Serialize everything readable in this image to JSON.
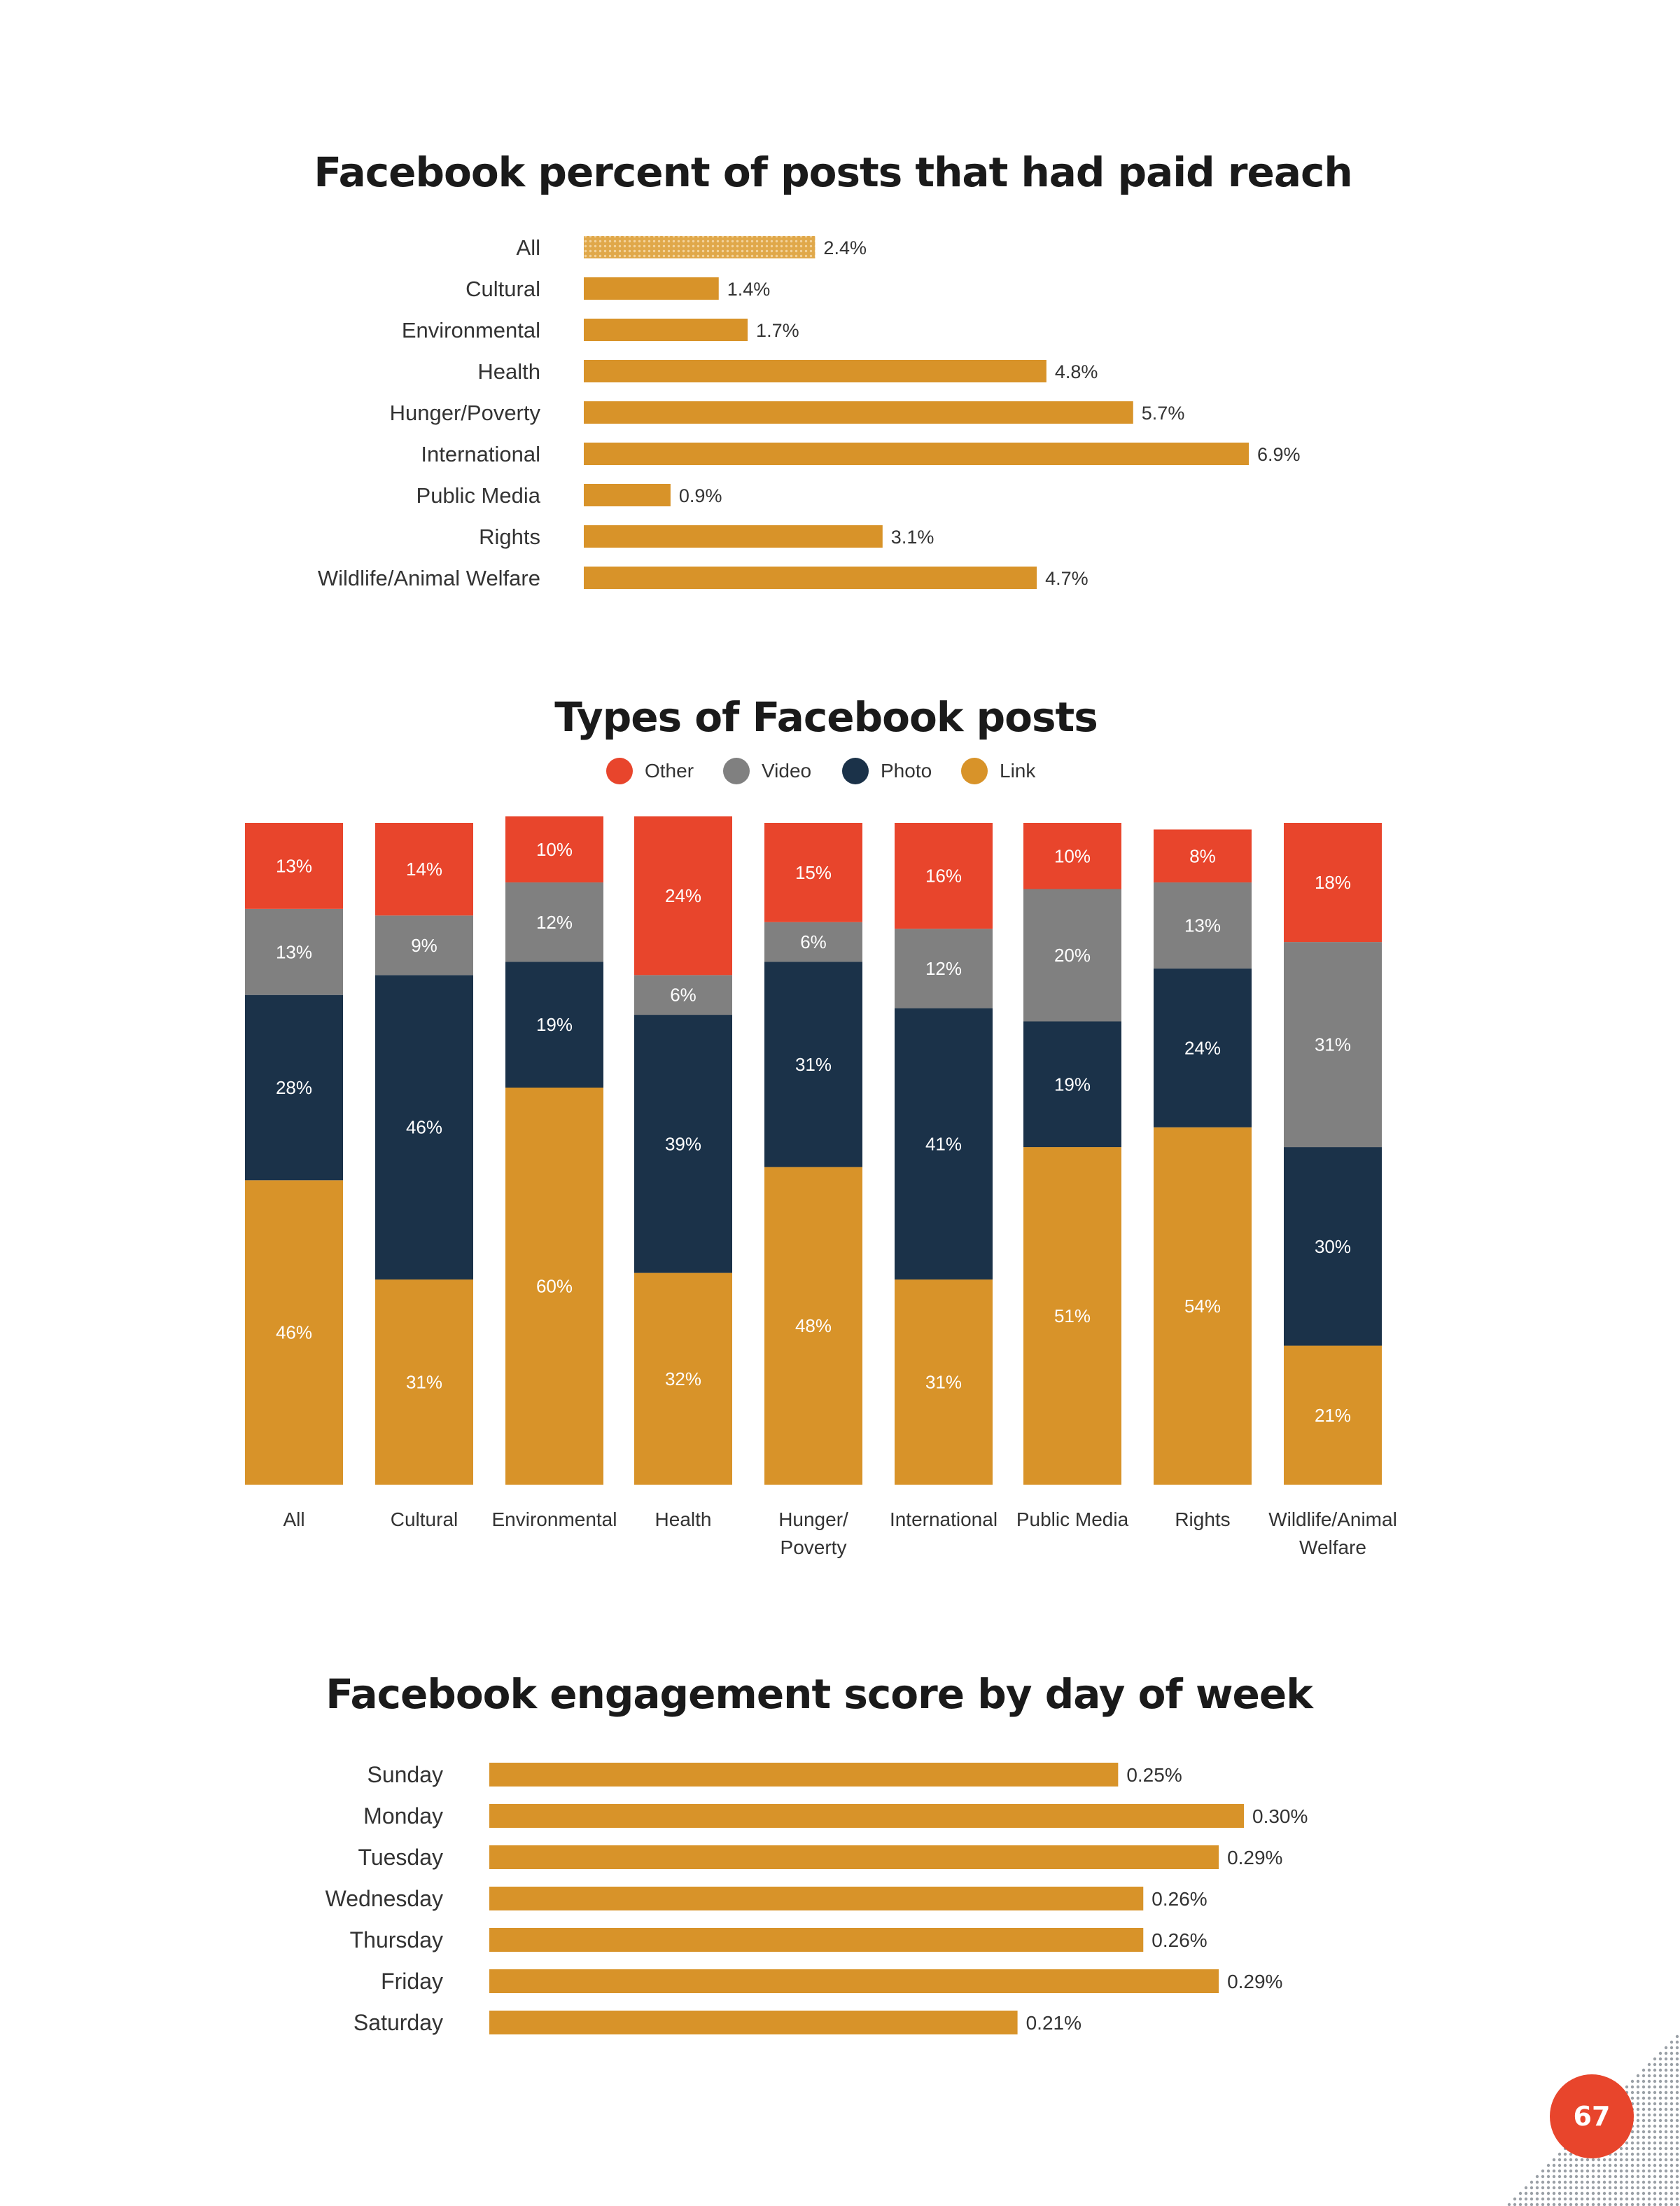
{
  "colors": {
    "link": "#d89329",
    "photo": "#1b3249",
    "video": "#808080",
    "other": "#e8452c",
    "accent": "#e8452c",
    "text": "#333333"
  },
  "page": {
    "number": "67"
  },
  "chart_data": [
    {
      "id": "paid",
      "type": "bar",
      "orientation": "horizontal",
      "title": "Facebook percent of posts that had paid reach",
      "categories": [
        "All",
        "Cultural",
        "Environmental",
        "Health",
        "Hunger/Poverty",
        "International",
        "Public Media",
        "Rights",
        "Wildlife/Animal Welfare"
      ],
      "values": [
        2.4,
        1.4,
        1.7,
        4.8,
        5.7,
        6.9,
        0.9,
        3.1,
        4.7
      ],
      "labels": [
        "2.4%",
        "1.4%",
        "1.7%",
        "4.8%",
        "5.7%",
        "6.9%",
        "0.9%",
        "3.1%",
        "4.7%"
      ],
      "highlight": "All",
      "xlim": [
        0,
        6.9
      ],
      "xlabel": "",
      "ylabel": ""
    },
    {
      "id": "types",
      "type": "bar",
      "stacked": true,
      "title": "Types of Facebook posts",
      "legend": [
        {
          "key": "other",
          "label": "Other"
        },
        {
          "key": "video",
          "label": "Video"
        },
        {
          "key": "photo",
          "label": "Photo"
        },
        {
          "key": "link",
          "label": "Link"
        }
      ],
      "categories": [
        "All",
        "Cultural",
        "Environmental",
        "Health",
        "Hunger/ Poverty",
        "International",
        "Public Media",
        "Rights",
        "Wildlife/Animal Welfare"
      ],
      "category_lines": [
        [
          "All"
        ],
        [
          "Cultural"
        ],
        [
          "Environmental"
        ],
        [
          "Health"
        ],
        [
          "Hunger/",
          "Poverty"
        ],
        [
          "International"
        ],
        [
          "Public Media"
        ],
        [
          "Rights"
        ],
        [
          "Wildlife/Animal",
          "Welfare"
        ]
      ],
      "series": [
        {
          "name": "Link",
          "key": "link",
          "values": [
            46,
            31,
            60,
            32,
            48,
            31,
            51,
            54,
            21
          ],
          "labels": [
            "46%",
            "31%",
            "60%",
            "32%",
            "48%",
            "31%",
            "51%",
            "54%",
            "21%"
          ]
        },
        {
          "name": "Photo",
          "key": "photo",
          "values": [
            28,
            46,
            19,
            39,
            31,
            41,
            19,
            24,
            30
          ],
          "labels": [
            "28%",
            "46%",
            "19%",
            "39%",
            "31%",
            "41%",
            "19%",
            "24%",
            "30%"
          ]
        },
        {
          "name": "Video",
          "key": "video",
          "values": [
            13,
            9,
            12,
            6,
            6,
            12,
            20,
            13,
            31
          ],
          "labels": [
            "13%",
            "9%",
            "12%",
            "6%",
            "6%",
            "12%",
            "20%",
            "13%",
            "31%"
          ]
        },
        {
          "name": "Other",
          "key": "other",
          "values": [
            13,
            14,
            10,
            24,
            15,
            16,
            10,
            8,
            18
          ],
          "labels": [
            "13%",
            "14%",
            "10%",
            "24%",
            "15%",
            "16%",
            "10%",
            "8%",
            "18%"
          ]
        }
      ],
      "ylim": [
        0,
        100
      ]
    },
    {
      "id": "engage",
      "type": "bar",
      "orientation": "horizontal",
      "title": "Facebook engagement score by day of week",
      "categories": [
        "Sunday",
        "Monday",
        "Tuesday",
        "Wednesday",
        "Thursday",
        "Friday",
        "Saturday"
      ],
      "values": [
        0.25,
        0.3,
        0.29,
        0.26,
        0.26,
        0.29,
        0.21
      ],
      "labels": [
        "0.25%",
        "0.30%",
        "0.29%",
        "0.26%",
        "0.26%",
        "0.29%",
        "0.21%"
      ],
      "xlim": [
        0,
        0.3
      ],
      "xlabel": "",
      "ylabel": ""
    }
  ]
}
